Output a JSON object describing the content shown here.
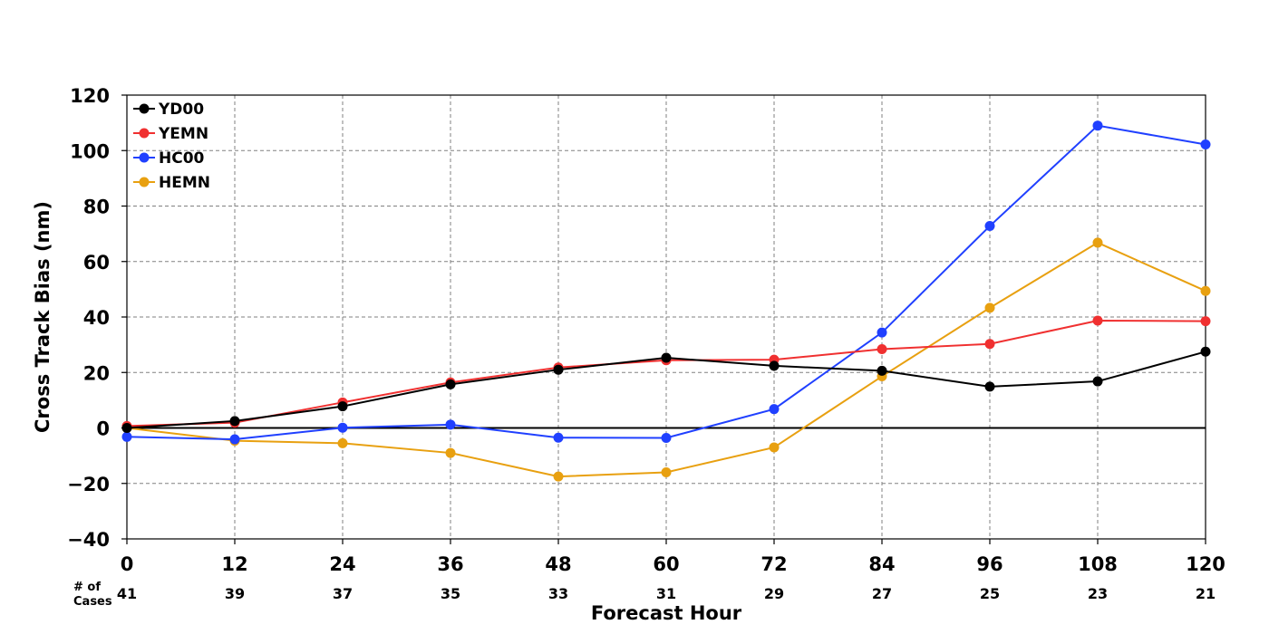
{
  "chart_data": {
    "type": "line",
    "xlabel": "Forecast Hour",
    "ylabel": "Cross Track Bias (nm)",
    "x": [
      0,
      12,
      24,
      36,
      48,
      60,
      72,
      84,
      96,
      108,
      120
    ],
    "xticks": [
      "0",
      "12",
      "24",
      "36",
      "48",
      "60",
      "72",
      "84",
      "96",
      "108",
      "120"
    ],
    "ylim": [
      -40,
      120
    ],
    "yticks": [
      -40,
      -20,
      0,
      20,
      40,
      60,
      80,
      100,
      120
    ],
    "ytick_labels": [
      "−40",
      "−20",
      "0",
      "20",
      "40",
      "60",
      "80",
      "100",
      "120"
    ],
    "grid": true,
    "legend_position": "top-left",
    "cases_label_line1": "# of",
    "cases_label_line2": "Cases",
    "cases": [
      "41",
      "39",
      "37",
      "35",
      "33",
      "31",
      "29",
      "27",
      "25",
      "23",
      "21"
    ],
    "series": [
      {
        "name": "YD00",
        "color": "#000000",
        "values": [
          0,
          2.5,
          7.8,
          15.7,
          21,
          25.3,
          22.4,
          20.6,
          14.9,
          16.8,
          27.5
        ]
      },
      {
        "name": "YEMN",
        "color": "#f03030",
        "values": [
          0.7,
          1.9,
          9.2,
          16.4,
          21.8,
          24.4,
          24.6,
          28.4,
          30.3,
          38.7,
          38.5
        ]
      },
      {
        "name": "HC00",
        "color": "#2040ff",
        "values": [
          -3.2,
          -4.1,
          0.1,
          1.2,
          -3.5,
          -3.6,
          6.8,
          34.4,
          72.8,
          109,
          102.2
        ]
      },
      {
        "name": "HEMN",
        "color": "#e8a010",
        "values": [
          0,
          -4.6,
          -5.5,
          -9,
          -17.5,
          -16,
          -7,
          18.6,
          43.3,
          66.8,
          49.4
        ]
      }
    ]
  }
}
